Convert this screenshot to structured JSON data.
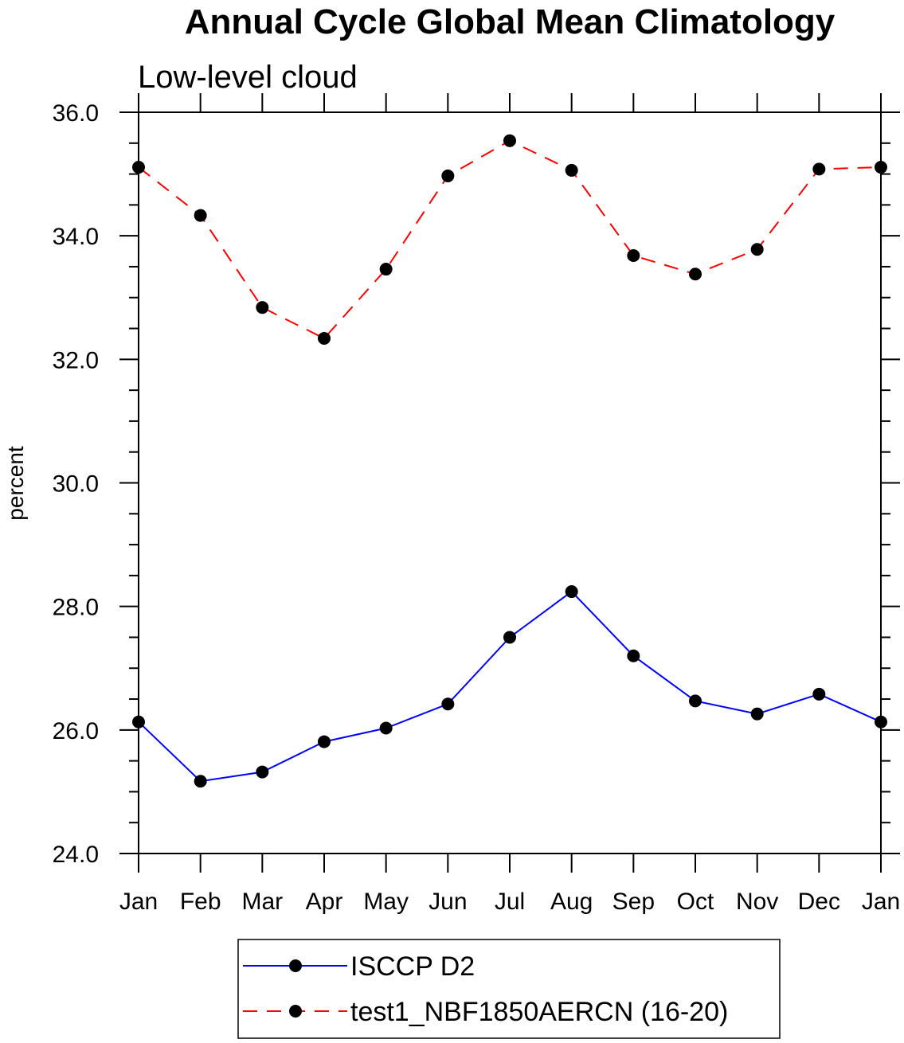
{
  "chart_data": {
    "type": "line",
    "title": "Annual Cycle Global Mean Climatology",
    "subtitle": "Low-level cloud",
    "xlabel": "",
    "ylabel": "percent",
    "ylim": [
      24.0,
      36.0
    ],
    "yticks": [
      "24.0",
      "26.0",
      "28.0",
      "30.0",
      "32.0",
      "34.0",
      "36.0"
    ],
    "categories": [
      "Jan",
      "Feb",
      "Mar",
      "Apr",
      "May",
      "Jun",
      "Jul",
      "Aug",
      "Sep",
      "Oct",
      "Nov",
      "Dec",
      "Jan"
    ],
    "grid": false,
    "legend_position": "bottom",
    "series": [
      {
        "name": "ISCCP D2",
        "color": "#0000ff",
        "dash": "solid",
        "values": [
          26.13,
          25.17,
          25.32,
          25.81,
          26.03,
          26.42,
          27.5,
          28.24,
          27.2,
          26.47,
          26.26,
          26.58,
          26.13
        ]
      },
      {
        "name": "test1_NBF1850AERCN (16-20)",
        "color": "#ff0000",
        "dash": "dashed",
        "values": [
          35.11,
          34.33,
          32.84,
          32.34,
          33.46,
          34.97,
          35.54,
          35.06,
          33.68,
          33.38,
          33.78,
          35.08,
          35.11
        ]
      }
    ]
  }
}
